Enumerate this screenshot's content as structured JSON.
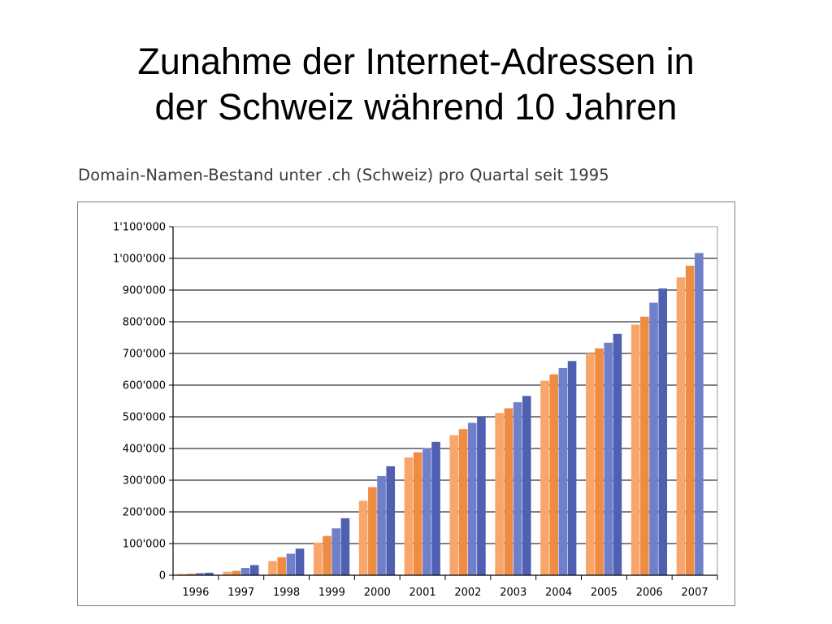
{
  "slide": {
    "title_line1": "Zunahme der Internet-Adressen in",
    "title_line2": "der Schweiz während 10 Jahren"
  },
  "chart_data": {
    "type": "bar",
    "title": "Domain-Namen-Bestand unter .ch (Schweiz) pro Quartal seit 1995",
    "xlabel": "",
    "ylabel": "",
    "categories": [
      "1996",
      "1997",
      "1998",
      "1999",
      "2000",
      "2001",
      "2002",
      "2003",
      "2004",
      "2005",
      "2006",
      "2007"
    ],
    "ylim": [
      0,
      1100000
    ],
    "yticks": [
      0,
      100000,
      200000,
      300000,
      400000,
      500000,
      600000,
      700000,
      800000,
      900000,
      1000000,
      1100000
    ],
    "ytick_labels": [
      "0",
      "100'000",
      "200'000",
      "300'000",
      "400'000",
      "500'000",
      "600'000",
      "700'000",
      "800'000",
      "900'000",
      "1'000'000",
      "1'100'000"
    ],
    "grid": true,
    "legend": "none",
    "quarter_colors": [
      "#f9a66c",
      "#ef8c44",
      "#6f7fc9",
      "#4f5fb2"
    ],
    "groups": [
      {
        "category": "1996",
        "values": [
          4000,
          5000,
          7000,
          8000
        ]
      },
      {
        "category": "1997",
        "values": [
          11000,
          14000,
          23000,
          32000
        ]
      },
      {
        "category": "1998",
        "values": [
          45000,
          57000,
          68000,
          84000
        ]
      },
      {
        "category": "1999",
        "values": [
          103000,
          124000,
          148000,
          180000
        ]
      },
      {
        "category": "2000",
        "values": [
          235000,
          278000,
          313000,
          344000
        ]
      },
      {
        "category": "2001",
        "values": [
          372000,
          388000,
          401000,
          421000
        ]
      },
      {
        "category": "2002",
        "values": [
          442000,
          461000,
          481000,
          500000
        ]
      },
      {
        "category": "2003",
        "values": [
          512000,
          527000,
          546000,
          566000
        ]
      },
      {
        "category": "2004",
        "values": [
          614000,
          634000,
          654000,
          676000
        ]
      },
      {
        "category": "2005",
        "values": [
          700000,
          716000,
          734000,
          762000
        ]
      },
      {
        "category": "2006",
        "values": [
          791000,
          816000,
          860000,
          905000
        ]
      },
      {
        "category": "2007",
        "values": [
          940000,
          977000,
          1017000
        ]
      }
    ]
  }
}
